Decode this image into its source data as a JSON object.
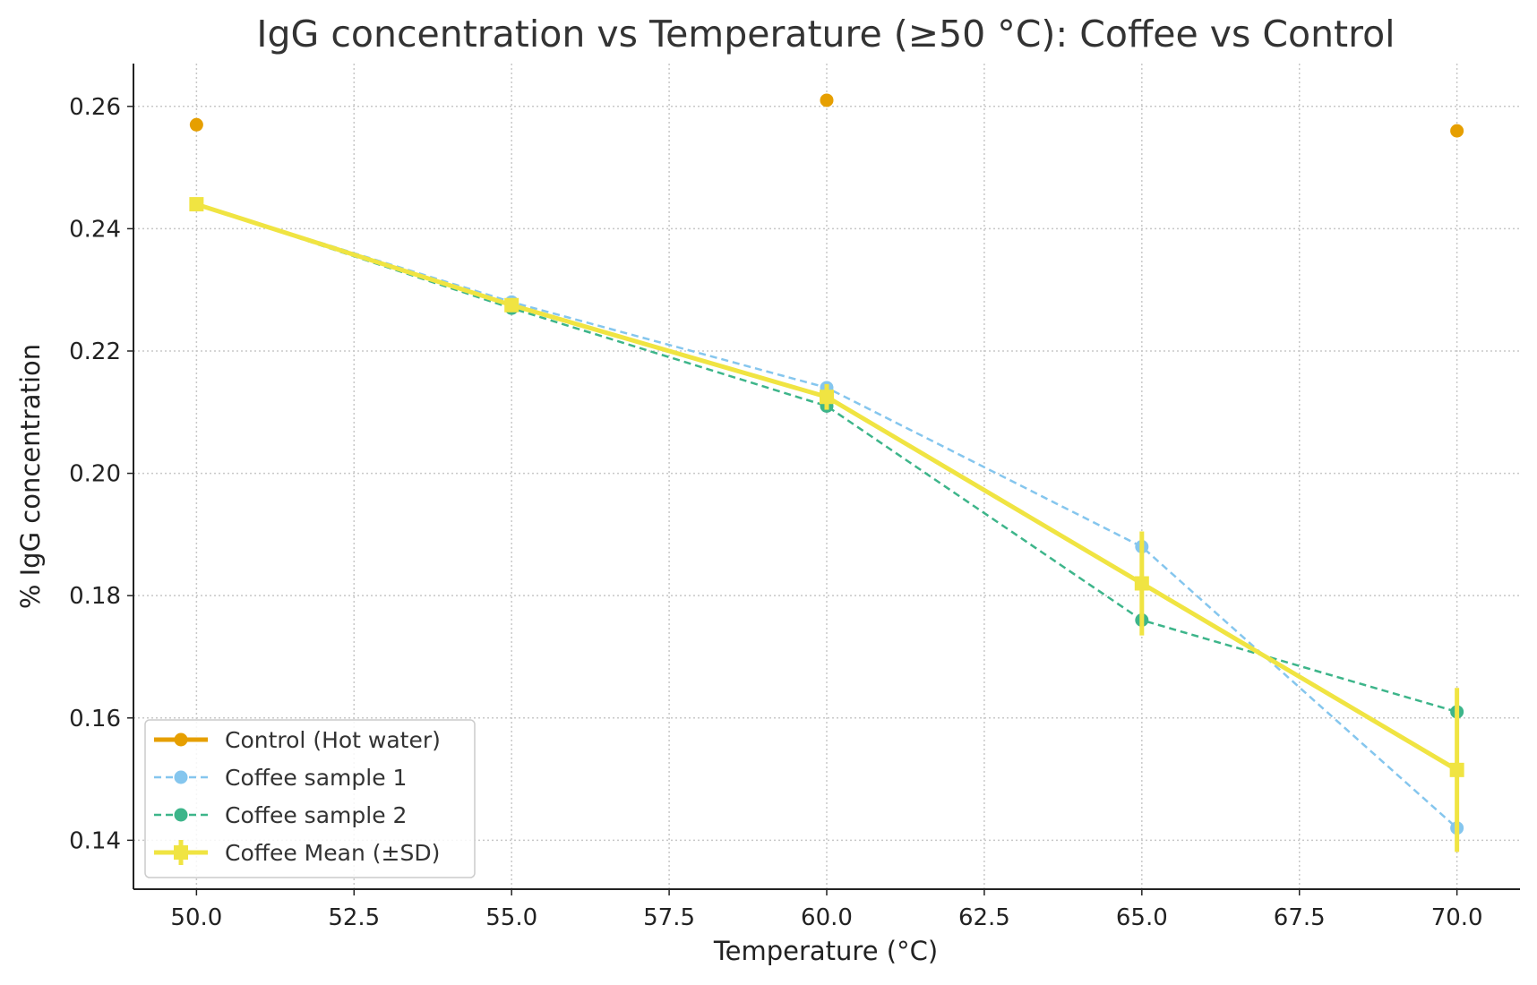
{
  "chart_data": {
    "type": "line",
    "title": "IgG concentration vs Temperature (≥50 °C): Coffee vs Control",
    "xlabel": "Temperature (°C)",
    "ylabel": "% IgG concentration",
    "xlim": [
      49,
      71
    ],
    "ylim": [
      0.132,
      0.267
    ],
    "xticks": [
      50.0,
      52.5,
      55.0,
      57.5,
      60.0,
      62.5,
      65.0,
      67.5,
      70.0
    ],
    "xtick_labels": [
      "50.0",
      "52.5",
      "55.0",
      "57.5",
      "60.0",
      "62.5",
      "65.0",
      "67.5",
      "70.0"
    ],
    "yticks": [
      0.14,
      0.16,
      0.18,
      0.2,
      0.22,
      0.24,
      0.26
    ],
    "ytick_labels": [
      "0.14",
      "0.16",
      "0.18",
      "0.20",
      "0.22",
      "0.24",
      "0.26"
    ],
    "grid": true,
    "legend_position": "lower-left",
    "series": [
      {
        "name": "Control (Hot water)",
        "color": "#E69F00",
        "style": "markers",
        "marker": "circle",
        "x": [
          50,
          60,
          70
        ],
        "y": [
          0.257,
          0.261,
          0.256
        ]
      },
      {
        "name": "Coffee sample 1",
        "color": "#85C6EE",
        "style": "dashed",
        "marker": "circle",
        "x": [
          50,
          55,
          60,
          65,
          70
        ],
        "y": [
          0.244,
          0.228,
          0.214,
          0.188,
          0.142
        ]
      },
      {
        "name": "Coffee sample 2",
        "color": "#3DB58A",
        "style": "dashed",
        "marker": "circle",
        "x": [
          50,
          55,
          60,
          65,
          70
        ],
        "y": [
          0.244,
          0.227,
          0.211,
          0.176,
          0.161
        ]
      },
      {
        "name": "Coffee Mean (±SD)",
        "color": "#F0E442",
        "style": "solid",
        "marker": "square",
        "x": [
          50,
          55,
          60,
          65,
          70
        ],
        "y": [
          0.244,
          0.2275,
          0.2125,
          0.182,
          0.1515
        ],
        "error": [
          0.0,
          0.0007,
          0.0021,
          0.0085,
          0.0134
        ]
      }
    ]
  }
}
